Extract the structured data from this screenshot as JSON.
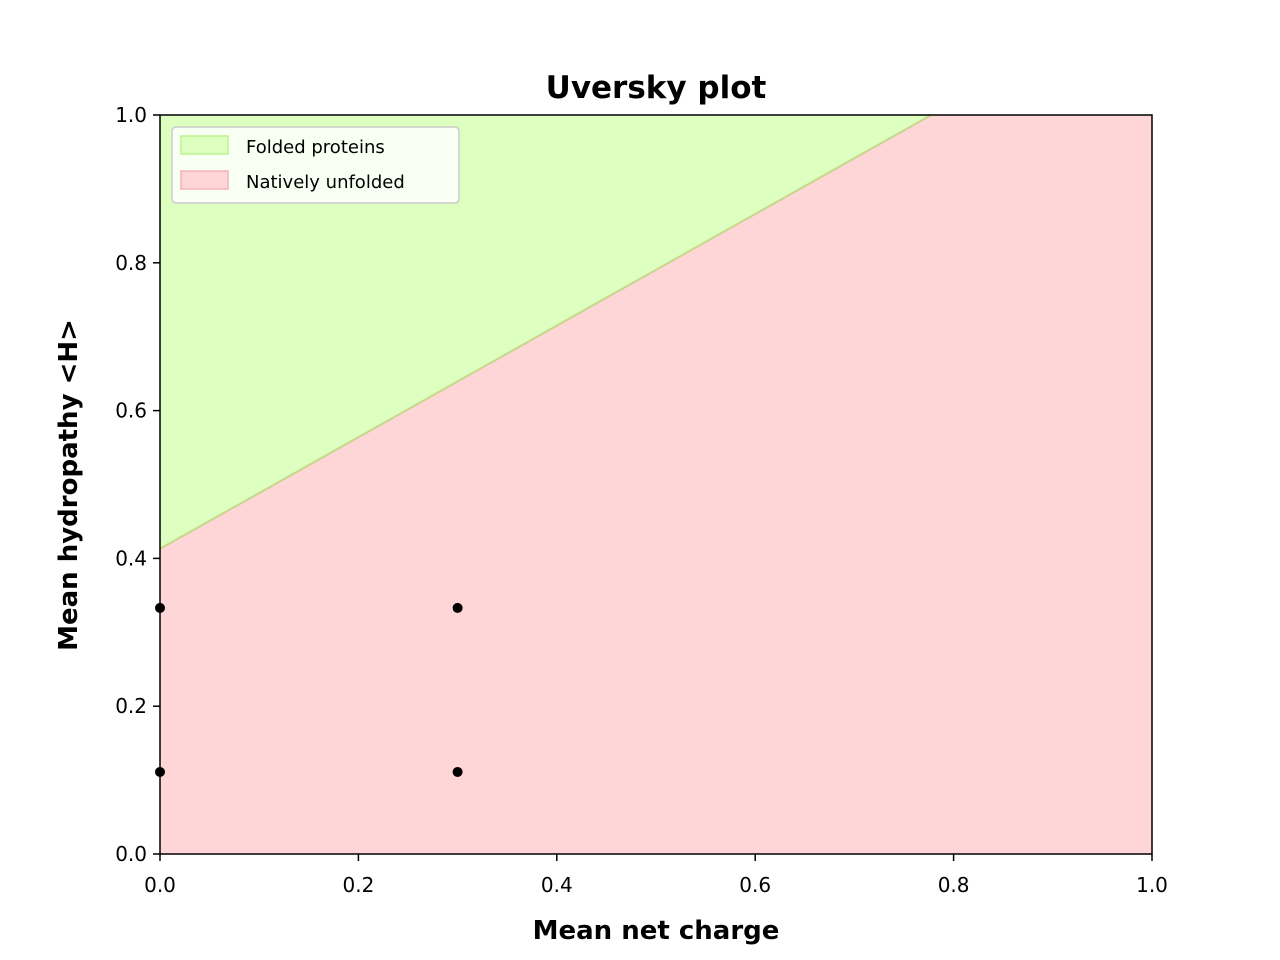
{
  "chart_data": {
    "type": "scatter",
    "title": "Uversky plot",
    "xlabel": "Mean net charge",
    "ylabel": "Mean hydropathy <H>",
    "xlim": [
      0.0,
      1.0
    ],
    "ylim": [
      0.0,
      1.0
    ],
    "xticks": [
      "0.0",
      "0.2",
      "0.4",
      "0.6",
      "0.8",
      "1.0"
    ],
    "yticks": [
      "0.0",
      "0.2",
      "0.4",
      "0.6",
      "0.8",
      "1.0"
    ],
    "grid": false,
    "legend_position": "upper-left",
    "boundary": {
      "intercept": 0.413,
      "slope": 0.755,
      "color": "#c8d68a"
    },
    "regions": [
      {
        "name": "Folded proteins",
        "color": "#ddffc0",
        "edge": "#b9f48f",
        "side": "above"
      },
      {
        "name": "Natively unfolded",
        "color": "#ffd6d7",
        "edge": "#f4b4b4",
        "side": "below"
      }
    ],
    "points": [
      {
        "x": 0.0,
        "y": 0.333
      },
      {
        "x": 0.0,
        "y": 0.111
      },
      {
        "x": 0.3,
        "y": 0.333
      },
      {
        "x": 0.3,
        "y": 0.111
      }
    ],
    "point_color": "#000000"
  }
}
